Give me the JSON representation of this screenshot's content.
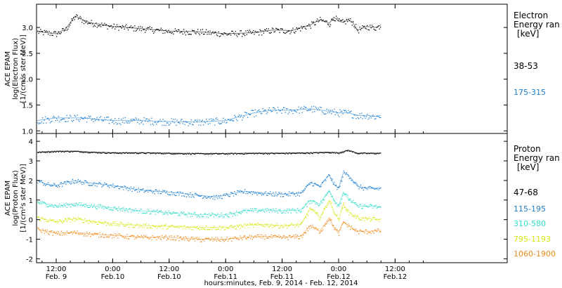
{
  "footer": {
    "xlabel": "hours:minutes, Feb.  9, 2014 - Feb. 12, 2014"
  },
  "x_ticks": [
    {
      "hour": 12,
      "time": "12:00",
      "date": "Feb. 9"
    },
    {
      "hour": 24,
      "time": "0:00",
      "date": "Feb.10"
    },
    {
      "hour": 36,
      "time": "12:00",
      "date": "Feb.10"
    },
    {
      "hour": 48,
      "time": "0:00",
      "date": "Feb.11"
    },
    {
      "hour": 60,
      "time": "12:00",
      "date": "Feb.11"
    },
    {
      "hour": 72,
      "time": "0:00",
      "date": "Feb.12"
    },
    {
      "hour": 84,
      "time": "12:00",
      "date": "Feb.12"
    }
  ],
  "chart_data": [
    {
      "type": "scatter",
      "ylabel": [
        "ACE EPAM",
        "log(Electron Flux)",
        "[1/(cm²s ster MeV)]"
      ],
      "ylim": [
        0.95,
        3.45
      ],
      "y_ticks": [
        1.0,
        1.5,
        2.0,
        2.5,
        3.0
      ],
      "legend": {
        "title": [
          "Electron",
          "Energy ran",
          "[keV]"
        ]
      },
      "series": [
        {
          "name": "38-53",
          "color": "#000000",
          "x": [
            8,
            12,
            14,
            16,
            17,
            18,
            20,
            24,
            30,
            36,
            42,
            48,
            54,
            58,
            62,
            66,
            68,
            69,
            70,
            71,
            72,
            73,
            74,
            75,
            76,
            78,
            80,
            81
          ],
          "values": [
            2.92,
            2.88,
            2.97,
            3.22,
            3.18,
            3.12,
            3.08,
            3.02,
            2.98,
            2.93,
            2.92,
            2.88,
            2.9,
            2.95,
            2.94,
            3.05,
            3.15,
            3.12,
            3.08,
            3.2,
            3.12,
            3.1,
            3.15,
            3.1,
            2.95,
            3.02,
            3.0,
            3.05
          ]
        },
        {
          "name": "175-315",
          "color": "#1e7fd0",
          "x": [
            8,
            12,
            18,
            24,
            30,
            36,
            42,
            48,
            52,
            54,
            58,
            62,
            66,
            70,
            72,
            74,
            76,
            78,
            80,
            81
          ],
          "values": [
            1.2,
            1.25,
            1.25,
            1.2,
            1.2,
            1.18,
            1.17,
            1.2,
            1.3,
            1.35,
            1.4,
            1.4,
            1.43,
            1.38,
            1.35,
            1.35,
            1.3,
            1.3,
            1.28,
            1.3
          ]
        }
      ]
    },
    {
      "type": "scatter",
      "ylabel": [
        "ACE EPAM",
        "log(Proton Flux)",
        "[1/(cm²s ster MeV)]"
      ],
      "ylim": [
        -2.2,
        4.4
      ],
      "y_ticks": [
        -2,
        -1,
        0,
        1,
        2,
        3,
        4
      ],
      "legend": {
        "title": [
          "Proton",
          "Energy ran",
          "[keV]"
        ]
      },
      "series": [
        {
          "name": "47-68",
          "color": "#000000",
          "x": [
            8,
            12,
            16,
            20,
            24,
            30,
            36,
            42,
            48,
            54,
            60,
            66,
            70,
            72,
            74,
            76,
            78,
            81
          ],
          "values": [
            3.45,
            3.5,
            3.5,
            3.45,
            3.42,
            3.42,
            3.4,
            3.38,
            3.38,
            3.4,
            3.4,
            3.42,
            3.45,
            3.42,
            3.55,
            3.4,
            3.4,
            3.4
          ]
        },
        {
          "name": "115-195",
          "color": "#1e7fd0",
          "x": [
            8,
            10,
            12,
            16,
            18,
            20,
            24,
            30,
            36,
            42,
            46,
            48,
            52,
            56,
            60,
            64,
            66,
            68,
            70,
            71,
            72,
            73,
            74,
            75,
            76,
            78,
            81
          ],
          "values": [
            2.0,
            1.8,
            1.75,
            2.0,
            1.9,
            1.85,
            1.75,
            1.5,
            1.4,
            1.25,
            1.15,
            1.25,
            1.45,
            1.35,
            1.3,
            1.35,
            1.9,
            1.7,
            2.3,
            1.8,
            1.6,
            2.4,
            2.3,
            2.0,
            1.7,
            1.6,
            1.6
          ]
        },
        {
          "name": "310-580",
          "color": "#2fdcc8",
          "x": [
            8,
            12,
            16,
            20,
            24,
            30,
            36,
            42,
            48,
            52,
            56,
            60,
            64,
            66,
            68,
            70,
            71,
            72,
            73,
            74,
            76,
            78,
            81
          ],
          "values": [
            0.9,
            0.7,
            0.8,
            0.7,
            0.6,
            0.45,
            0.35,
            0.25,
            0.25,
            0.45,
            0.5,
            0.45,
            0.5,
            1.0,
            0.8,
            1.5,
            1.0,
            0.7,
            1.4,
            1.1,
            0.7,
            0.7,
            0.65
          ]
        },
        {
          "name": "795-1193",
          "color": "#d8e614",
          "x": [
            8,
            12,
            16,
            20,
            24,
            30,
            36,
            42,
            48,
            52,
            56,
            60,
            64,
            66,
            68,
            70,
            71,
            72,
            73,
            74,
            76,
            78,
            81
          ],
          "values": [
            0.1,
            -0.1,
            0.05,
            -0.1,
            -0.2,
            -0.3,
            -0.35,
            -0.4,
            -0.4,
            -0.3,
            -0.25,
            -0.3,
            -0.25,
            0.6,
            0.1,
            1.0,
            0.4,
            0.0,
            0.8,
            0.4,
            0.1,
            0.05,
            0.0
          ]
        },
        {
          "name": "1060-1900",
          "color": "#f08a1c",
          "x": [
            8,
            12,
            16,
            20,
            24,
            30,
            36,
            42,
            48,
            52,
            56,
            60,
            64,
            66,
            68,
            70,
            71,
            72,
            73,
            74,
            76,
            78,
            81
          ],
          "values": [
            -0.5,
            -0.7,
            -0.65,
            -0.75,
            -0.8,
            -0.9,
            -0.9,
            -1.0,
            -1.0,
            -0.9,
            -0.85,
            -0.9,
            -0.85,
            -0.3,
            -0.6,
            0.1,
            -0.4,
            -0.7,
            -0.1,
            -0.3,
            -0.6,
            -0.6,
            -0.55
          ]
        }
      ]
    }
  ]
}
